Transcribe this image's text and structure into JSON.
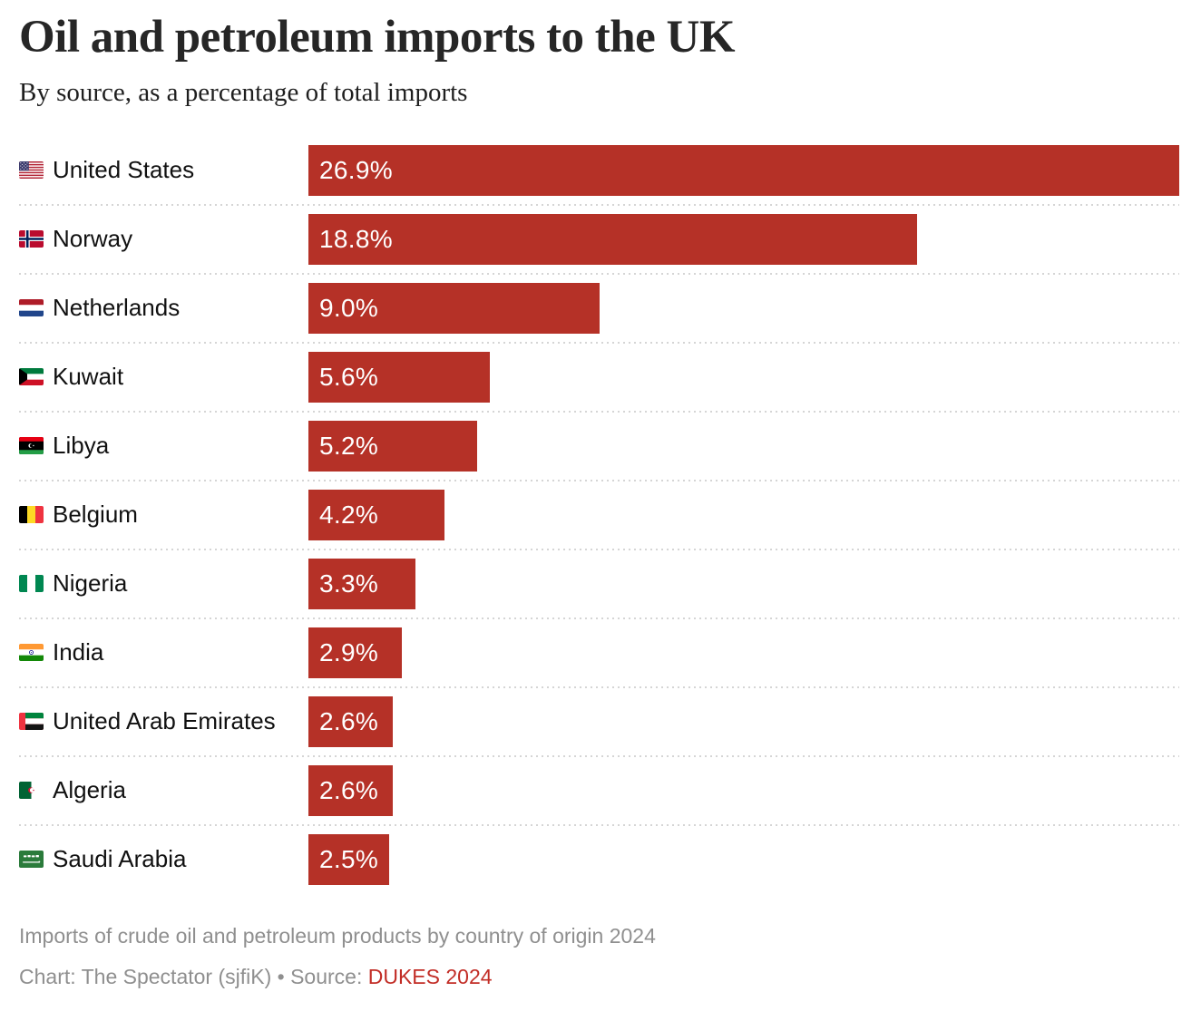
{
  "header": {
    "title": "Oil and petroleum imports to the UK",
    "subtitle": "By source, as a percentage of total imports"
  },
  "chart_data": {
    "type": "bar",
    "orientation": "horizontal",
    "title": "Oil and petroleum imports to the UK",
    "subtitle": "By source, as a percentage of total imports",
    "unit": "%",
    "xlim": [
      0,
      26.9
    ],
    "grid": false,
    "legend": false,
    "bar_color": "#b53127",
    "categories": [
      "United States",
      "Norway",
      "Netherlands",
      "Kuwait",
      "Libya",
      "Belgium",
      "Nigeria",
      "India",
      "United Arab Emirates",
      "Algeria",
      "Saudi Arabia"
    ],
    "values": [
      26.9,
      18.8,
      9.0,
      5.6,
      5.2,
      4.2,
      3.3,
      2.9,
      2.6,
      2.6,
      2.5
    ],
    "value_labels": [
      "26.9%",
      "18.8%",
      "9.0%",
      "5.6%",
      "5.2%",
      "4.2%",
      "3.3%",
      "2.9%",
      "2.6%",
      "2.6%",
      "2.5%"
    ],
    "flag_codes": [
      "us",
      "no",
      "nl",
      "kw",
      "ly",
      "be",
      "ng",
      "in",
      "ae",
      "dz",
      "sa"
    ],
    "flag_icon_names": [
      "united-states-flag-icon",
      "norway-flag-icon",
      "netherlands-flag-icon",
      "kuwait-flag-icon",
      "libya-flag-icon",
      "belgium-flag-icon",
      "nigeria-flag-icon",
      "india-flag-icon",
      "united-arab-emirates-flag-icon",
      "algeria-flag-icon",
      "saudi-arabia-flag-icon"
    ]
  },
  "footer": {
    "note": "Imports of crude oil and petroleum products by country of origin 2024",
    "credit_prefix": "Chart: The Spectator (sjfiK) • Source: ",
    "source_link_label": "DUKES 2024"
  },
  "colors": {
    "bar": "#b53127",
    "link": "#c22d26",
    "separator": "#d5d5d5",
    "muted_text": "#8f8f8f",
    "title_text": "#262626",
    "label_text": "#111111"
  }
}
